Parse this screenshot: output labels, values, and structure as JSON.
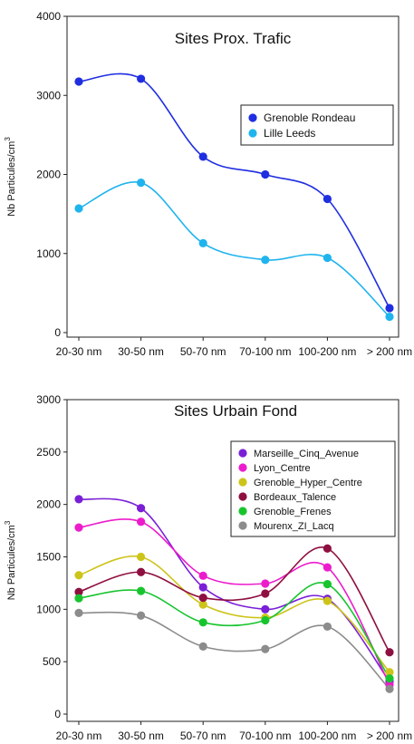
{
  "chart_data": [
    {
      "type": "line",
      "title": "Sites Prox. Trafic",
      "ylabel": "Nb Particules/cm",
      "ylabel_sup": "3",
      "categories": [
        "20-30 nm",
        "30-50 nm",
        "50-70 nm",
        "70-100 nm",
        "100-200 nm",
        "> 200 nm"
      ],
      "ylim": [
        0,
        4000
      ],
      "yticks": [
        0,
        1000,
        2000,
        3000,
        4000
      ],
      "grid": false,
      "legend": "right",
      "series": [
        {
          "name": "Grenoble Rondeau",
          "color": "#1f2ee0",
          "values": [
            3175,
            3210,
            2225,
            2000,
            1690,
            310
          ]
        },
        {
          "name": "Lille Leeds",
          "color": "#1fb4ee",
          "values": [
            1570,
            1895,
            1130,
            920,
            945,
            200
          ]
        }
      ]
    },
    {
      "type": "line",
      "title": "Sites Urbain Fond",
      "ylabel": "Nb Particules/cm",
      "ylabel_sup": "3",
      "categories": [
        "20-30 nm",
        "30-50 nm",
        "50-70 nm",
        "70-100 nm",
        "100-200 nm",
        "> 200 nm"
      ],
      "ylim": [
        0,
        3000
      ],
      "yticks": [
        0,
        500,
        1000,
        1500,
        2000,
        2500,
        3000
      ],
      "grid": false,
      "legend": "top-right",
      "series": [
        {
          "name": "Marseille_Cinq_Avenue",
          "color": "#7a1fd6",
          "values": [
            2050,
            1965,
            1210,
            1000,
            1100,
            310
          ]
        },
        {
          "name": "Lyon_Centre",
          "color": "#ec1ccc",
          "values": [
            1780,
            1835,
            1320,
            1245,
            1400,
            280
          ]
        },
        {
          "name": "Grenoble_Hyper_Centre",
          "color": "#cdc41a",
          "values": [
            1325,
            1500,
            1045,
            920,
            1080,
            400
          ]
        },
        {
          "name": "Bordeaux_Talence",
          "color": "#8e1040",
          "values": [
            1165,
            1355,
            1110,
            1150,
            1580,
            590
          ]
        },
        {
          "name": "Grenoble_Frenes",
          "color": "#18c42e",
          "values": [
            1105,
            1175,
            875,
            895,
            1240,
            340
          ]
        },
        {
          "name": "Mourenx_ZI_Lacq",
          "color": "#8c8c8c",
          "values": [
            965,
            940,
            645,
            620,
            835,
            240
          ]
        }
      ]
    }
  ]
}
